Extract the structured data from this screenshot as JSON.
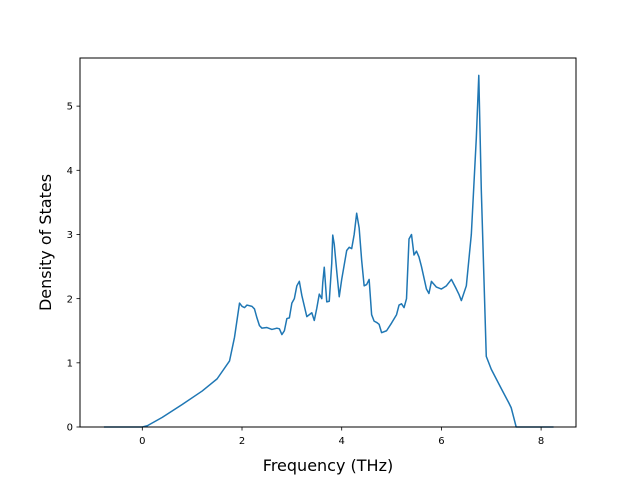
{
  "chart_data": {
    "type": "line",
    "title": "",
    "xlabel": "Frequency (THz)",
    "ylabel": "Density of States",
    "xlim": [
      -1.25,
      8.7
    ],
    "ylim": [
      0,
      5.75
    ],
    "xticks": [
      0,
      2,
      4,
      6,
      8
    ],
    "xtick_labels": [
      "0",
      "2",
      "4",
      "6",
      "8"
    ],
    "yticks": [
      0,
      1,
      2,
      3,
      4,
      5
    ],
    "ytick_labels": [
      "0",
      "1",
      "2",
      "3",
      "4",
      "5"
    ],
    "grid": false,
    "legend": "none",
    "series": [
      {
        "color": "#1f77b4",
        "x": [
          -0.77,
          -0.5,
          -0.2,
          0.0,
          0.1,
          0.4,
          0.8,
          1.2,
          1.5,
          1.75,
          1.85,
          1.95,
          2.0,
          2.05,
          2.1,
          2.2,
          2.25,
          2.3,
          2.35,
          2.4,
          2.5,
          2.6,
          2.7,
          2.75,
          2.8,
          2.85,
          2.9,
          2.95,
          3.0,
          3.05,
          3.1,
          3.15,
          3.2,
          3.3,
          3.4,
          3.45,
          3.5,
          3.55,
          3.6,
          3.62,
          3.65,
          3.7,
          3.75,
          3.8,
          3.82,
          3.85,
          3.9,
          3.95,
          4.0,
          4.1,
          4.15,
          4.2,
          4.25,
          4.3,
          4.35,
          4.4,
          4.45,
          4.5,
          4.55,
          4.6,
          4.65,
          4.7,
          4.75,
          4.8,
          4.9,
          5.0,
          5.1,
          5.15,
          5.2,
          5.25,
          5.3,
          5.35,
          5.4,
          5.45,
          5.5,
          5.55,
          5.6,
          5.7,
          5.75,
          5.8,
          5.9,
          6.0,
          6.1,
          6.2,
          6.3,
          6.35,
          6.4,
          6.5,
          6.6,
          6.65,
          6.7,
          6.75,
          6.8,
          6.85,
          6.9,
          7.0,
          7.2,
          7.35,
          7.4,
          7.45,
          7.5,
          7.7,
          8.0,
          8.25
        ],
        "y": [
          0.0,
          0.0,
          0.0,
          0.0,
          0.02,
          0.15,
          0.35,
          0.56,
          0.75,
          1.03,
          1.4,
          1.93,
          1.88,
          1.86,
          1.9,
          1.88,
          1.84,
          1.7,
          1.58,
          1.54,
          1.55,
          1.52,
          1.54,
          1.53,
          1.44,
          1.5,
          1.69,
          1.7,
          1.93,
          2.0,
          2.2,
          2.27,
          2.05,
          1.72,
          1.78,
          1.66,
          1.85,
          2.07,
          2.0,
          2.25,
          2.49,
          1.95,
          1.96,
          2.55,
          2.99,
          2.85,
          2.43,
          2.03,
          2.3,
          2.75,
          2.8,
          2.78,
          3.0,
          3.33,
          3.1,
          2.6,
          2.2,
          2.22,
          2.3,
          1.75,
          1.65,
          1.63,
          1.6,
          1.47,
          1.5,
          1.62,
          1.75,
          1.9,
          1.92,
          1.86,
          2.0,
          2.93,
          3.0,
          2.68,
          2.74,
          2.65,
          2.5,
          2.15,
          2.08,
          2.27,
          2.18,
          2.15,
          2.2,
          2.3,
          2.15,
          2.07,
          1.97,
          2.2,
          3.0,
          3.75,
          4.5,
          5.48,
          3.7,
          2.4,
          1.1,
          0.9,
          0.6,
          0.38,
          0.3,
          0.15,
          0.0,
          0.0,
          0.0,
          0.0
        ]
      }
    ]
  }
}
